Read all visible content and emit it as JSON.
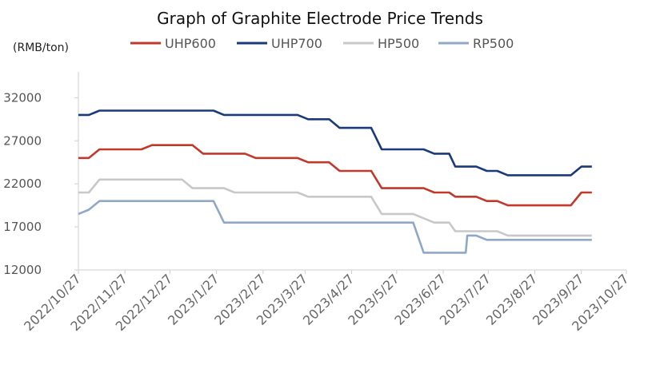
{
  "chart_data": {
    "type": "line",
    "title": "Graph of Graphite Electrode Price Trends",
    "ylabel": "(RMB/ton)",
    "xlabel": "",
    "ylim": [
      12000,
      35000
    ],
    "yticks": [
      "12000",
      "17000",
      "22000",
      "27000",
      "32000"
    ],
    "x_tick_labels": [
      "2022/10/27",
      "2022/11/27",
      "2022/12/27",
      "2023/1/27",
      "2023/2/27",
      "2023/3/27",
      "2023/4/27",
      "2023/5/27",
      "2023/6/27",
      "2023/7/27",
      "2023/8/27",
      "2023/9/27",
      "2023/10/27"
    ],
    "xlim": [
      "2022-10-27",
      "2023-10-27"
    ],
    "legend_position": "top",
    "grid": false,
    "series": [
      {
        "name": "UHP600",
        "color": "#c0392b",
        "points": [
          [
            "2022-10-27",
            25000
          ],
          [
            "2022-11-03",
            25000
          ],
          [
            "2022-11-10",
            26000
          ],
          [
            "2022-12-08",
            26000
          ],
          [
            "2022-12-15",
            26500
          ],
          [
            "2023-01-11",
            26500
          ],
          [
            "2023-01-18",
            25500
          ],
          [
            "2023-02-15",
            25500
          ],
          [
            "2023-02-22",
            25000
          ],
          [
            "2023-03-22",
            25000
          ],
          [
            "2023-03-29",
            24500
          ],
          [
            "2023-04-12",
            24500
          ],
          [
            "2023-04-19",
            23500
          ],
          [
            "2023-05-10",
            23500
          ],
          [
            "2023-05-17",
            21500
          ],
          [
            "2023-06-14",
            21500
          ],
          [
            "2023-06-21",
            21000
          ],
          [
            "2023-07-01",
            21000
          ],
          [
            "2023-07-05",
            20500
          ],
          [
            "2023-07-19",
            20500
          ],
          [
            "2023-07-26",
            20000
          ],
          [
            "2023-08-02",
            20000
          ],
          [
            "2023-08-09",
            19500
          ],
          [
            "2023-09-20",
            19500
          ],
          [
            "2023-09-27",
            21000
          ],
          [
            "2023-10-04",
            21000
          ]
        ]
      },
      {
        "name": "UHP700",
        "color": "#1a3a7a",
        "points": [
          [
            "2022-10-27",
            30000
          ],
          [
            "2022-11-03",
            30000
          ],
          [
            "2022-11-10",
            30500
          ],
          [
            "2023-01-25",
            30500
          ],
          [
            "2023-02-01",
            30000
          ],
          [
            "2023-03-22",
            30000
          ],
          [
            "2023-03-29",
            29500
          ],
          [
            "2023-04-12",
            29500
          ],
          [
            "2023-04-19",
            28500
          ],
          [
            "2023-05-10",
            28500
          ],
          [
            "2023-05-17",
            26000
          ],
          [
            "2023-06-14",
            26000
          ],
          [
            "2023-06-21",
            25500
          ],
          [
            "2023-07-01",
            25500
          ],
          [
            "2023-07-05",
            24000
          ],
          [
            "2023-07-19",
            24000
          ],
          [
            "2023-07-26",
            23500
          ],
          [
            "2023-08-02",
            23500
          ],
          [
            "2023-08-09",
            23000
          ],
          [
            "2023-09-20",
            23000
          ],
          [
            "2023-09-27",
            24000
          ],
          [
            "2023-10-04",
            24000
          ]
        ]
      },
      {
        "name": "HP500",
        "color": "#c8c8c8",
        "points": [
          [
            "2022-10-27",
            21000
          ],
          [
            "2022-11-03",
            21000
          ],
          [
            "2022-11-10",
            22500
          ],
          [
            "2023-01-04",
            22500
          ],
          [
            "2023-01-11",
            21500
          ],
          [
            "2023-02-01",
            21500
          ],
          [
            "2023-02-08",
            21000
          ],
          [
            "2023-03-22",
            21000
          ],
          [
            "2023-03-29",
            20500
          ],
          [
            "2023-05-10",
            20500
          ],
          [
            "2023-05-17",
            18500
          ],
          [
            "2023-06-07",
            18500
          ],
          [
            "2023-06-14",
            18000
          ],
          [
            "2023-06-21",
            17500
          ],
          [
            "2023-07-01",
            17500
          ],
          [
            "2023-07-05",
            16500
          ],
          [
            "2023-08-02",
            16500
          ],
          [
            "2023-08-09",
            16000
          ],
          [
            "2023-10-04",
            16000
          ]
        ]
      },
      {
        "name": "RP500",
        "color": "#8fa8c8",
        "points": [
          [
            "2022-10-27",
            18500
          ],
          [
            "2022-11-03",
            19000
          ],
          [
            "2022-11-10",
            20000
          ],
          [
            "2023-01-25",
            20000
          ],
          [
            "2023-02-01",
            17500
          ],
          [
            "2023-06-07",
            17500
          ],
          [
            "2023-06-14",
            14000
          ],
          [
            "2023-07-12",
            14000
          ],
          [
            "2023-07-13",
            16000
          ],
          [
            "2023-07-19",
            16000
          ],
          [
            "2023-07-26",
            15500
          ],
          [
            "2023-10-04",
            15500
          ]
        ]
      }
    ]
  }
}
